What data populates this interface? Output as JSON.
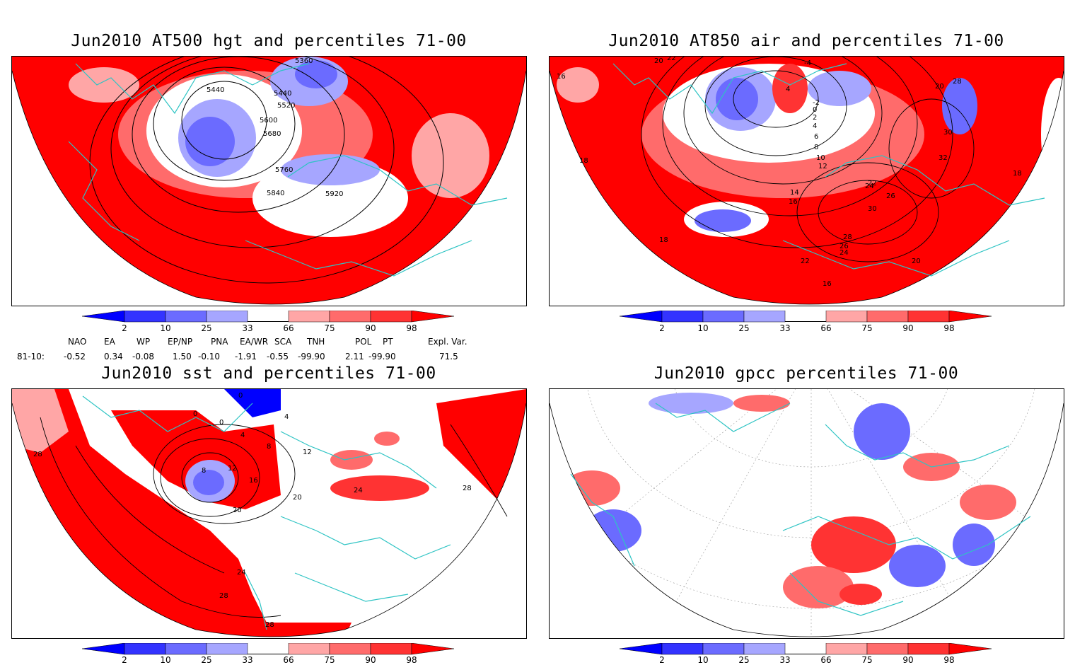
{
  "palette": {
    "deep_red": "#ff0000",
    "red": "#ff3333",
    "mid_red": "#ff6b6b",
    "light_red": "#ffa6a6",
    "light_blue": "#a6a6ff",
    "mid_blue": "#6b6bff",
    "blue": "#3333ff",
    "deep_blue": "#0000ff",
    "coast": "#2ec4c4",
    "contour": "#000000"
  },
  "colorbar": {
    "ticks": [
      "2",
      "10",
      "25",
      "33",
      "66",
      "75",
      "90",
      "98"
    ]
  },
  "panels": [
    {
      "id": "p1",
      "title": "Jun2010 AT500 hgt and percentiles 71-00",
      "contour_labels": [
        "5360",
        "5440",
        "5440",
        "5520",
        "5600",
        "5680",
        "5760",
        "5840",
        "5920"
      ]
    },
    {
      "id": "p2",
      "title": "Jun2010 AT850 air and percentiles 71-00",
      "contour_labels": [
        "20",
        "22",
        "16",
        "-4",
        "4",
        "-2",
        "0",
        "2",
        "4",
        "6",
        "8",
        "10",
        "12",
        "14",
        "16",
        "18",
        "18",
        "18",
        "20",
        "22",
        "24",
        "26",
        "28",
        "30",
        "30",
        "32",
        "28",
        "26",
        "24",
        "22",
        "20",
        "16"
      ]
    },
    {
      "id": "p3",
      "title": "Jun2010 sst and percentiles 71-00",
      "contour_labels": [
        "28",
        "0",
        "0",
        "0",
        "4",
        "4",
        "8",
        "8",
        "12",
        "12",
        "16",
        "20",
        "20",
        "24",
        "24",
        "28",
        "28",
        "28"
      ]
    },
    {
      "id": "p4",
      "title": "Jun2010 gpcc percentiles 71-00",
      "contour_labels": []
    }
  ],
  "teleconnections": {
    "headers": [
      "NAO",
      "EA",
      "WP",
      "EP/NP",
      "PNA",
      "EA/WR",
      "SCA",
      "TNH",
      "POL",
      "PT",
      "Expl. Var."
    ],
    "row_label": "81-10:",
    "values": [
      "-0.52",
      "0.34",
      "-0.08",
      "1.50",
      "-0.10",
      "-1.91",
      "-0.55",
      "-99.90",
      "2.11",
      "-99.90",
      "71.5"
    ]
  }
}
